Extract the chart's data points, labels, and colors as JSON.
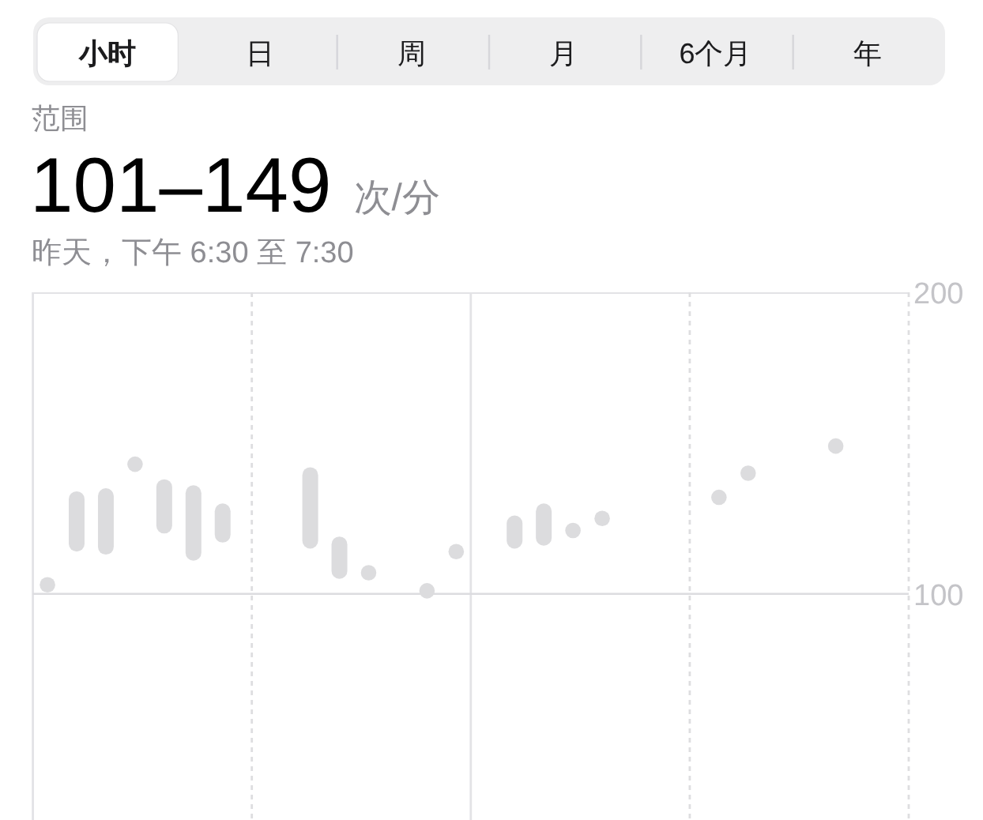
{
  "chart_data": {
    "type": "bar",
    "title": "101–149",
    "subtitle": "昨天，下午 6:30 至 7:30",
    "annotations": [
      "小时",
      "日",
      "周",
      "月",
      "6个月",
      "年",
      "范围",
      "次/分"
    ],
    "categories": [
      null,
      null,
      null,
      null,
      null,
      null,
      null,
      null,
      null,
      null,
      null,
      null,
      null,
      null,
      null,
      null,
      null,
      null,
      null,
      null,
      null,
      null,
      null,
      null,
      null,
      null,
      null,
      null,
      null,
      null
    ],
    "series": [
      {
        "color": "#dcdcde",
        "base": [
          null,
          114,
          113,
          null,
          120,
          111,
          117,
          null,
          null,
          115,
          105,
          null,
          null,
          null,
          null,
          null,
          115,
          116,
          null,
          null,
          null,
          null,
          null,
          null,
          null,
          null,
          null,
          null,
          null,
          null
        ],
        "values": [
          null,
          20,
          22,
          null,
          18,
          25,
          13,
          null,
          null,
          27,
          14,
          null,
          null,
          null,
          null,
          null,
          11,
          14,
          null,
          null,
          null,
          null,
          null,
          null,
          null,
          null,
          null,
          null,
          null,
          null
        ]
      },
      {
        "type": "scatter",
        "color": "#dcdcde",
        "values": [
          103,
          null,
          null,
          143,
          null,
          null,
          null,
          null,
          null,
          null,
          null,
          107,
          null,
          101,
          114,
          null,
          null,
          null,
          121,
          125,
          null,
          null,
          null,
          132,
          140,
          null,
          null,
          149,
          null,
          null
        ]
      }
    ],
    "marker": "circle",
    "ylim": [
      25,
      200
    ],
    "yticks": [
      100,
      200
    ],
    "tick_labels": "y",
    "ref_lines": [
      {
        "axis": "y",
        "value": 100,
        "line_style": "solid",
        "color": "#dcdcdf"
      }
    ]
  }
}
